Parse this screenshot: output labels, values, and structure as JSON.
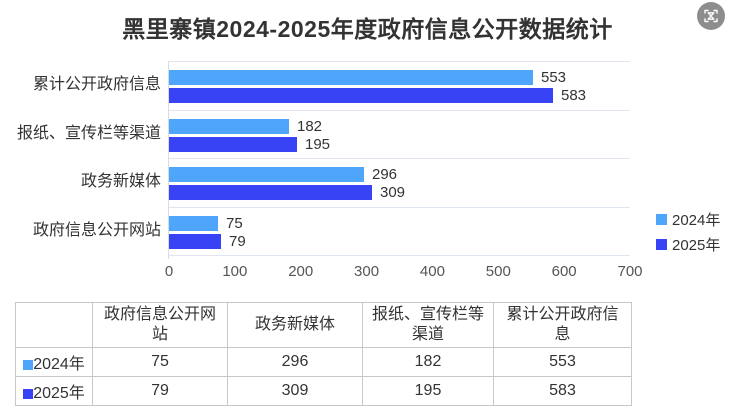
{
  "title": "黑里寨镇2024-2025年度政府信息公开数据统计",
  "toolbar": {
    "capture_icon": "focus-frame-icon"
  },
  "colors": {
    "series_2024": "#4ea5f9",
    "series_2025": "#3843f6",
    "grid_line": "#e0e6f1",
    "text": "#333333",
    "axis_text": "#555555"
  },
  "chart_data": {
    "type": "bar",
    "orientation": "horizontal",
    "title": "黑里寨镇2024-2025年度政府信息公开数据统计",
    "categories": [
      "政府信息公开网站",
      "政务新媒体",
      "报纸、宣传栏等渠道",
      "累计公开政府信息"
    ],
    "series": [
      {
        "name": "2024年",
        "color": "#4ea5f9",
        "values": [
          75,
          296,
          182,
          553
        ]
      },
      {
        "name": "2025年",
        "color": "#3843f6",
        "values": [
          79,
          309,
          195,
          583
        ]
      }
    ],
    "xlabel": "",
    "ylabel": "",
    "xlim": [
      0,
      700
    ],
    "x_ticks": [
      0,
      100,
      200,
      300,
      400,
      500,
      600,
      700
    ],
    "grid": true,
    "legend_position": "right",
    "value_labels": true
  },
  "legend": {
    "items": [
      {
        "label": "2024年",
        "color": "#4ea5f9"
      },
      {
        "label": "2025年",
        "color": "#3843f6"
      }
    ]
  },
  "table": {
    "corner_header": "",
    "columns": [
      "政府信息公开网站",
      "政务新媒体",
      "报纸、宣传栏等渠道",
      "累计公开政府信息"
    ],
    "rows": [
      {
        "label": "2024年",
        "color": "#4ea5f9",
        "values": [
          "75",
          "296",
          "182",
          "553"
        ]
      },
      {
        "label": "2025年",
        "color": "#3843f6",
        "values": [
          "79",
          "309",
          "195",
          "583"
        ]
      }
    ]
  }
}
